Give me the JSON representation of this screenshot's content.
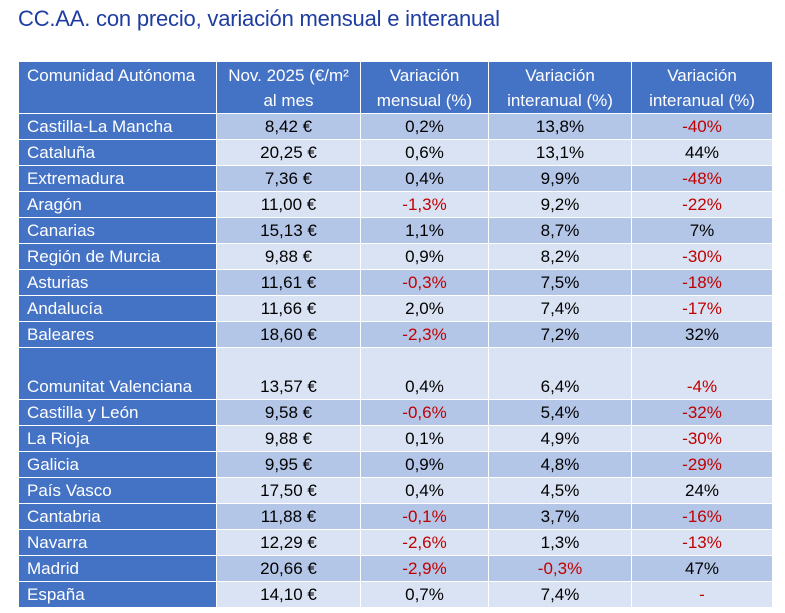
{
  "title": "CC.AA. con precio, variación mensual e interanual",
  "headers": [
    "Comunidad Autónoma",
    "Nov. 2025 (€/m² al mes",
    "Variación mensual (%)",
    "Variación interanual (%)",
    "Variación interanual (%)"
  ],
  "rows": [
    [
      "Castilla-La Mancha",
      "8,42 €",
      "0,2%",
      "13,8%",
      "-40%"
    ],
    [
      "Cataluña",
      "20,25 €",
      "0,6%",
      "13,1%",
      "44%"
    ],
    [
      "Extremadura",
      "7,36 €",
      "0,4%",
      "9,9%",
      "-48%"
    ],
    [
      "Aragón",
      "11,00 €",
      "-1,3%",
      "9,2%",
      "-22%"
    ],
    [
      "Canarias",
      "15,13 €",
      "1,1%",
      "8,7%",
      "7%"
    ],
    [
      "Región de Murcia",
      "9,88 €",
      "0,9%",
      "8,2%",
      "-30%"
    ],
    [
      "Asturias",
      "11,61 €",
      "-0,3%",
      "7,5%",
      "-18%"
    ],
    [
      "Andalucía",
      "11,66 €",
      "2,0%",
      "7,4%",
      "-17%"
    ],
    [
      "Baleares",
      "18,60 €",
      "-2,3%",
      "7,2%",
      "32%"
    ],
    [
      "Comunitat Valenciana",
      "13,57 €",
      "0,4%",
      "6,4%",
      "-4%"
    ],
    [
      "Castilla y León",
      "9,58 €",
      "-0,6%",
      "5,4%",
      "-32%"
    ],
    [
      "La Rioja",
      "9,88 €",
      "0,1%",
      "4,9%",
      "-30%"
    ],
    [
      "Galicia",
      "9,95 €",
      "0,9%",
      "4,8%",
      "-29%"
    ],
    [
      "País Vasco",
      "17,50 €",
      "0,4%",
      "4,5%",
      "24%"
    ],
    [
      "Cantabria",
      "11,88 €",
      "-0,1%",
      "3,7%",
      "-16%"
    ],
    [
      "Navarra",
      "12,29 €",
      "-2,6%",
      "1,3%",
      "-13%"
    ],
    [
      "Madrid",
      "20,66 €",
      "-2,9%",
      "-0,3%",
      "47%"
    ],
    [
      "España",
      "14,10 €",
      "0,7%",
      "7,4%",
      "-"
    ]
  ],
  "colors": {
    "header_bg": "#4472c4",
    "row_odd": "#b4c6e7",
    "row_even": "#dae3f3",
    "negative": "#c00000",
    "title": "#1f3da0"
  }
}
